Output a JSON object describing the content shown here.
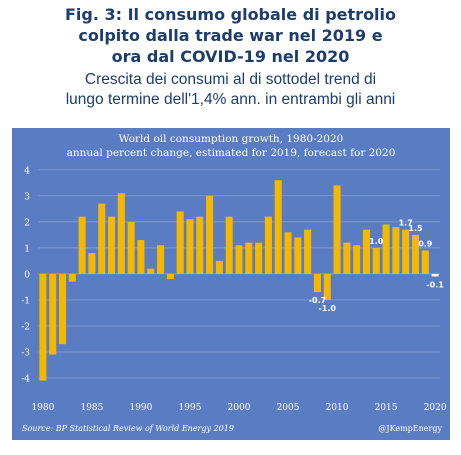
{
  "figure": {
    "title_lines": [
      "Fig. 3: Il consumo globale di petrolio",
      "colpito dalla trade war nel 2019 e",
      "ora dal COVID-19 nel 2020"
    ],
    "subtitle_lines": [
      "Crescita dei consumi al di sottodel trend di",
      "lungo termine dell'1,4% ann. in entrambi gli anni"
    ]
  },
  "colors": {
    "panel_background": "#5a7cc2",
    "bar": "#f5b800",
    "forecast_bar": "#fdf3cf",
    "title_text": "#1c3d6e"
  },
  "chart_data": {
    "type": "bar",
    "title": "World oil consumption growth, 1980-2020",
    "subtitle": "annual percent change, estimated for 2019, forecast for 2020",
    "source": "Source: BP Statistical Review of World Energy 2019",
    "credit": "@JKempEnergy",
    "x": [
      1980,
      1981,
      1982,
      1983,
      1984,
      1985,
      1986,
      1987,
      1988,
      1989,
      1990,
      1991,
      1992,
      1993,
      1994,
      1995,
      1996,
      1997,
      1998,
      1999,
      2000,
      2001,
      2002,
      2003,
      2004,
      2005,
      2006,
      2007,
      2008,
      2009,
      2010,
      2011,
      2012,
      2013,
      2014,
      2015,
      2016,
      2017,
      2018,
      2019,
      2020
    ],
    "values": [
      -4.1,
      -3.1,
      -2.7,
      -0.3,
      2.2,
      0.8,
      2.7,
      2.2,
      3.1,
      2.0,
      1.3,
      0.2,
      1.1,
      -0.2,
      2.4,
      2.1,
      2.2,
      3.0,
      0.5,
      2.2,
      1.1,
      1.2,
      1.2,
      2.2,
      3.6,
      1.6,
      1.4,
      1.7,
      -0.7,
      -1.0,
      3.4,
      1.2,
      1.1,
      1.7,
      1.0,
      1.9,
      1.8,
      1.7,
      1.5,
      0.9,
      -0.1
    ],
    "data_labels": [
      {
        "x": 2008,
        "text": "-0.7"
      },
      {
        "x": 2009,
        "text": "-1.0"
      },
      {
        "x": 2014,
        "text": "1.0"
      },
      {
        "x": 2017,
        "text": "1.7"
      },
      {
        "x": 2018,
        "text": "1.5"
      },
      {
        "x": 2019,
        "text": "0.9"
      },
      {
        "x": 2020,
        "text": "-0.1"
      }
    ],
    "highlighted": [
      2020
    ],
    "x_ticks": [
      1980,
      1985,
      1990,
      1995,
      2000,
      2005,
      2010,
      2015,
      2020
    ],
    "y_ticks": [
      -4,
      -3,
      -2,
      -1,
      0,
      1,
      2,
      3,
      4
    ],
    "ylim": [
      -4.5,
      4.3
    ],
    "grid": "horizontal"
  }
}
